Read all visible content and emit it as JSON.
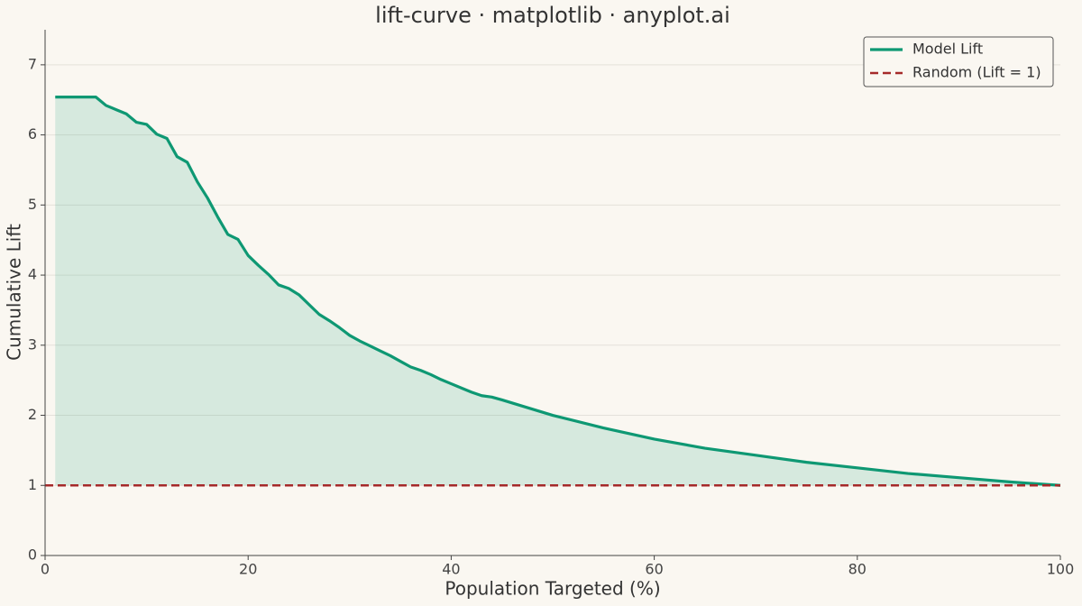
{
  "chart_data": {
    "type": "line",
    "title": "lift-curve · matplotlib · anyplot.ai",
    "xlabel": "Population Targeted (%)",
    "ylabel": "Cumulative Lift",
    "xlim": [
      0,
      100
    ],
    "ylim": [
      0,
      7.5
    ],
    "xticks": [
      0,
      20,
      40,
      60,
      80,
      100
    ],
    "yticks": [
      0,
      1,
      2,
      3,
      4,
      5,
      6,
      7
    ],
    "grid": true,
    "legend": "upper right",
    "series": [
      {
        "name": "Model Lift",
        "color": "#0e9873",
        "fill": true,
        "x": [
          1,
          2,
          3,
          4,
          5,
          6,
          7,
          8,
          9,
          10,
          11,
          12,
          13,
          14,
          15,
          16,
          17,
          18,
          19,
          20,
          21,
          22,
          23,
          24,
          25,
          26,
          27,
          28,
          29,
          30,
          31,
          32,
          33,
          34,
          35,
          36,
          37,
          38,
          39,
          40,
          41,
          42,
          43,
          44,
          45,
          50,
          55,
          60,
          65,
          70,
          75,
          80,
          85,
          90,
          95,
          100
        ],
        "values": [
          6.54,
          6.54,
          6.54,
          6.54,
          6.54,
          6.42,
          6.36,
          6.3,
          6.18,
          6.15,
          6.01,
          5.95,
          5.69,
          5.61,
          5.33,
          5.1,
          4.83,
          4.58,
          4.51,
          4.28,
          4.14,
          4.01,
          3.86,
          3.81,
          3.72,
          3.58,
          3.44,
          3.35,
          3.25,
          3.14,
          3.06,
          2.99,
          2.92,
          2.85,
          2.77,
          2.69,
          2.64,
          2.58,
          2.51,
          2.45,
          2.39,
          2.33,
          2.28,
          2.26,
          2.22,
          2.0,
          1.82,
          1.66,
          1.53,
          1.43,
          1.33,
          1.25,
          1.17,
          1.11,
          1.05,
          1.0
        ]
      },
      {
        "name": "Random (Lift = 1)",
        "color": "#a52a2a",
        "dashed": true,
        "x": [
          0,
          100
        ],
        "values": [
          1,
          1
        ]
      }
    ]
  }
}
